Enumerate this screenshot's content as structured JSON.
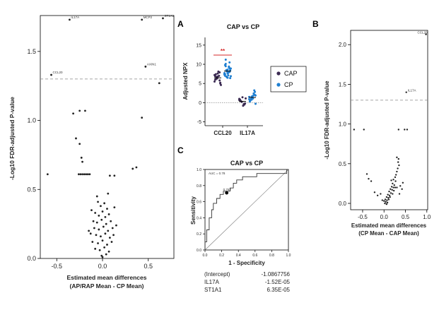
{
  "figure": {
    "panel_letters": {
      "a": "A",
      "b": "B",
      "c": "C"
    }
  },
  "chart_data": [
    {
      "id": "left",
      "type": "scatter",
      "title": "",
      "xlabel_line1": "Estimated mean differences",
      "xlabel_line2": "(AP/RAP Mean - CP Mean)",
      "ylabel": "-Log10 FDR-adjusted P-value",
      "xlim": [
        -0.68,
        0.78
      ],
      "ylim": [
        0,
        1.76
      ],
      "xticks": [
        "-0.5",
        "0.0",
        "0.5"
      ],
      "xtick_values": [
        -0.5,
        0.0,
        0.5
      ],
      "yticks": [
        "0.0",
        "0.5",
        "1.0",
        "1.5"
      ],
      "ytick_values": [
        0.0,
        0.5,
        1.0,
        1.5
      ],
      "threshold": 1.3,
      "labeled_points": [
        {
          "label": "IL17A",
          "x": -0.36,
          "y": 1.73
        },
        {
          "label": "MCP2",
          "x": 0.43,
          "y": 1.73
        },
        {
          "label": "ST1A1",
          "x": 0.66,
          "y": 1.74
        },
        {
          "label": "CCL20",
          "x": -0.56,
          "y": 1.33
        },
        {
          "label": "AXIN1",
          "x": 0.47,
          "y": 1.39
        }
      ],
      "points": [
        [
          -0.6,
          0.61
        ],
        [
          -0.32,
          1.05
        ],
        [
          -0.25,
          1.07
        ],
        [
          -0.19,
          1.07
        ],
        [
          0.62,
          1.27
        ],
        [
          0.43,
          1.02
        ],
        [
          -0.29,
          0.87
        ],
        [
          -0.25,
          0.83
        ],
        [
          -0.23,
          0.73
        ],
        [
          -0.22,
          0.7
        ],
        [
          -0.26,
          0.61
        ],
        [
          -0.24,
          0.61
        ],
        [
          -0.22,
          0.61
        ],
        [
          -0.2,
          0.61
        ],
        [
          -0.18,
          0.61
        ],
        [
          -0.16,
          0.61
        ],
        [
          -0.14,
          0.61
        ],
        [
          0.08,
          0.6
        ],
        [
          0.13,
          0.6
        ],
        [
          0.33,
          0.65
        ],
        [
          0.37,
          0.66
        ],
        [
          -0.05,
          0.41
        ],
        [
          -0.02,
          0.38
        ],
        [
          0.02,
          0.4
        ],
        [
          0.05,
          0.36
        ],
        [
          -0.08,
          0.33
        ],
        [
          -0.04,
          0.31
        ],
        [
          0.0,
          0.34
        ],
        [
          0.03,
          0.3
        ],
        [
          0.07,
          0.32
        ],
        [
          -0.1,
          0.27
        ],
        [
          -0.06,
          0.26
        ],
        [
          -0.01,
          0.28
        ],
        [
          0.04,
          0.25
        ],
        [
          0.09,
          0.27
        ],
        [
          -0.09,
          0.22
        ],
        [
          -0.04,
          0.21
        ],
        [
          0.01,
          0.23
        ],
        [
          0.06,
          0.2
        ],
        [
          0.11,
          0.22
        ],
        [
          -0.13,
          0.18
        ],
        [
          -0.07,
          0.17
        ],
        [
          -0.02,
          0.16
        ],
        [
          0.03,
          0.18
        ],
        [
          0.08,
          0.15
        ],
        [
          0.12,
          0.17
        ],
        [
          -0.11,
          0.12
        ],
        [
          -0.05,
          0.11
        ],
        [
          0.0,
          0.13
        ],
        [
          0.05,
          0.1
        ],
        [
          0.1,
          0.12
        ],
        [
          -0.08,
          0.07
        ],
        [
          -0.03,
          0.06
        ],
        [
          0.02,
          0.08
        ],
        [
          0.07,
          0.05
        ],
        [
          -0.01,
          0.02
        ],
        [
          0.04,
          0.03
        ],
        [
          0.0,
          0.01
        ],
        [
          -0.15,
          0.2
        ],
        [
          0.15,
          0.24
        ],
        [
          -0.12,
          0.35
        ],
        [
          0.13,
          0.37
        ],
        [
          -0.06,
          0.45
        ],
        [
          0.06,
          0.47
        ]
      ]
    },
    {
      "id": "A",
      "type": "scatter",
      "title": "CAP vs CP",
      "xlabel": "",
      "ylabel": "Adjusted NPX",
      "categories": [
        "CCL20",
        "IL17A"
      ],
      "yticks": [
        "15",
        "10",
        "5",
        "0",
        "-5"
      ],
      "ytick_values": [
        15,
        10,
        5,
        0,
        -5
      ],
      "ylim": [
        -6,
        17
      ],
      "significance": "**",
      "legend": [
        "CAP",
        "CP"
      ],
      "series": [
        {
          "name": "CAP",
          "color": "#3b2a52",
          "values": {
            "CCL20": [
              7.2,
              6.5,
              5.8,
              6.9,
              7.6,
              5.2,
              6.1,
              8.1,
              4.6,
              6.7,
              7.0,
              5.5,
              6.3,
              7.9,
              6.0,
              6.8,
              5.0,
              7.4
            ],
            "IL17A": [
              1.0,
              0.2,
              -0.5,
              0.8,
              1.4,
              -0.2,
              0.5,
              -0.8,
              1.1,
              0.3,
              -0.4,
              0.7
            ]
          }
        },
        {
          "name": "CP",
          "color": "#1f7fd1",
          "values": {
            "CCL20": [
              7.5,
              8.2,
              9.0,
              7.0,
              6.5,
              8.8,
              10.1,
              7.8,
              6.9,
              8.5,
              9.4,
              7.3,
              6.6,
              8.0,
              9.8,
              7.6,
              8.4,
              11.2,
              7.1,
              8.9,
              6.8,
              9.2,
              7.7,
              8.1,
              10.5,
              7.4,
              8.6,
              6.4,
              9.5,
              7.9
            ],
            "IL17A": [
              1.5,
              0.8,
              2.1,
              0.3,
              1.2,
              2.8,
              0.6,
              1.8,
              -0.3,
              1.0,
              2.4,
              0.9,
              1.6,
              3.2,
              0.4,
              1.3,
              2.0,
              0.7,
              1.1,
              1.9
            ]
          }
        }
      ]
    },
    {
      "id": "B",
      "type": "scatter",
      "title": "",
      "xlabel_line1": "Estimated mean differences",
      "xlabel_line2": "(CP Mean - CAP Mean)",
      "ylabel": "-Log10 FDR-adjusted P-value",
      "xlim": [
        -0.78,
        1.02
      ],
      "ylim": [
        -0.08,
        2.18
      ],
      "xticks": [
        "-0.5",
        "0.0",
        "0.5",
        "1.0"
      ],
      "xtick_values": [
        -0.5,
        0.0,
        0.5,
        1.0
      ],
      "yticks": [
        "0.0",
        "0.5",
        "1.0",
        "1.5",
        "2.0"
      ],
      "ytick_values": [
        0.0,
        0.5,
        1.0,
        1.5,
        2.0
      ],
      "threshold": 1.3,
      "labeled_points": [
        {
          "label": "CCL20",
          "x": 0.98,
          "y": 2.13
        },
        {
          "label": "IL17A",
          "x": 0.52,
          "y": 1.4
        }
      ],
      "points": [
        [
          -0.7,
          0.93
        ],
        [
          -0.47,
          0.93
        ],
        [
          0.34,
          0.93
        ],
        [
          0.48,
          0.93
        ],
        [
          0.54,
          0.93
        ],
        [
          -0.4,
          0.37
        ],
        [
          -0.36,
          0.31
        ],
        [
          -0.3,
          0.28
        ],
        [
          -0.22,
          0.14
        ],
        [
          -0.15,
          0.1
        ],
        [
          0.3,
          0.58
        ],
        [
          0.34,
          0.56
        ],
        [
          0.33,
          0.52
        ],
        [
          0.35,
          0.48
        ],
        [
          0.32,
          0.44
        ],
        [
          0.3,
          0.4
        ],
        [
          0.28,
          0.36
        ],
        [
          0.26,
          0.33
        ],
        [
          0.22,
          0.3
        ],
        [
          0.27,
          0.28
        ],
        [
          0.2,
          0.25
        ],
        [
          0.24,
          0.23
        ],
        [
          0.18,
          0.21
        ],
        [
          0.22,
          0.2
        ],
        [
          0.26,
          0.2
        ],
        [
          0.3,
          0.2
        ],
        [
          0.15,
          0.18
        ],
        [
          0.19,
          0.17
        ],
        [
          0.23,
          0.16
        ],
        [
          0.12,
          0.15
        ],
        [
          0.16,
          0.13
        ],
        [
          0.2,
          0.12
        ],
        [
          0.09,
          0.11
        ],
        [
          0.13,
          0.1
        ],
        [
          0.06,
          0.08
        ],
        [
          0.1,
          0.07
        ],
        [
          0.14,
          0.08
        ],
        [
          0.03,
          0.05
        ],
        [
          0.07,
          0.04
        ],
        [
          0.11,
          0.05
        ],
        [
          0.0,
          0.03
        ],
        [
          0.04,
          0.02
        ],
        [
          0.08,
          0.01
        ],
        [
          -0.04,
          0.04
        ],
        [
          0.02,
          0.0
        ],
        [
          0.06,
          -0.01
        ],
        [
          0.38,
          0.22
        ],
        [
          0.42,
          0.18
        ],
        [
          0.36,
          0.12
        ],
        [
          0.44,
          0.26
        ],
        [
          -0.08,
          0.12
        ],
        [
          0.17,
          0.29
        ]
      ]
    },
    {
      "id": "C",
      "type": "line",
      "title": "CAP vs CP",
      "xlabel": "1 - Specificity",
      "ylabel": "Sensitivity",
      "xlim": [
        0,
        1
      ],
      "ylim": [
        0,
        1
      ],
      "xticks": [
        "0.0",
        "0.2",
        "0.4",
        "0.6",
        "0.8",
        "1.0"
      ],
      "xtick_values": [
        0.0,
        0.2,
        0.4,
        0.6,
        0.8,
        1.0
      ],
      "yticks": [
        "0.0",
        "0.2",
        "0.4",
        "0.6",
        "0.8",
        "1.0"
      ],
      "ytick_values": [
        0.0,
        0.2,
        0.4,
        0.6,
        0.8,
        1.0
      ],
      "auc_label": "AUC = 0.78",
      "point_label": "0.762",
      "point": [
        0.26,
        0.71
      ],
      "roc": [
        [
          0,
          0
        ],
        [
          0,
          0.1
        ],
        [
          0.02,
          0.1
        ],
        [
          0.02,
          0.25
        ],
        [
          0.05,
          0.25
        ],
        [
          0.05,
          0.4
        ],
        [
          0.08,
          0.4
        ],
        [
          0.08,
          0.5
        ],
        [
          0.1,
          0.5
        ],
        [
          0.1,
          0.58
        ],
        [
          0.14,
          0.58
        ],
        [
          0.14,
          0.64
        ],
        [
          0.18,
          0.64
        ],
        [
          0.18,
          0.69
        ],
        [
          0.22,
          0.69
        ],
        [
          0.22,
          0.73
        ],
        [
          0.3,
          0.73
        ],
        [
          0.3,
          0.77
        ],
        [
          0.34,
          0.77
        ],
        [
          0.34,
          0.83
        ],
        [
          0.38,
          0.83
        ],
        [
          0.38,
          0.87
        ],
        [
          0.45,
          0.87
        ],
        [
          0.45,
          0.91
        ],
        [
          0.62,
          0.91
        ],
        [
          0.62,
          0.95
        ],
        [
          0.98,
          0.95
        ],
        [
          0.98,
          1.0
        ],
        [
          1.0,
          1.0
        ]
      ],
      "coefficients": [
        {
          "name": "(Intercept)",
          "value": "-1.0867756"
        },
        {
          "name": "IL17A",
          "value": "-1.52E-05"
        },
        {
          "name": "ST1A1",
          "value": "6.35E-05"
        }
      ]
    }
  ]
}
